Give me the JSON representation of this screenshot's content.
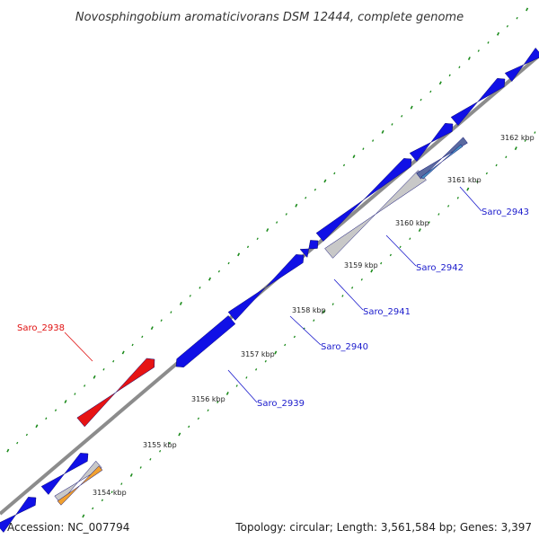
{
  "title": "Novosphingobium aromaticivorans DSM 12444, complete genome",
  "footer": {
    "accession": "Accession: NC_007794",
    "summary": "Topology: circular; Length: 3,561,584 bp; Genes: 3,397"
  },
  "ticks": [
    {
      "label": "3154 kbp"
    },
    {
      "label": "3155 kbp"
    },
    {
      "label": "3156 kbp"
    },
    {
      "label": "3157 kbp"
    },
    {
      "label": "3158 kbp"
    },
    {
      "label": "3159 kbp"
    },
    {
      "label": "3160 kbp"
    },
    {
      "label": "3161 kbp"
    },
    {
      "label": "3162 kbp"
    }
  ],
  "gene_labels": [
    {
      "name": "Saro_2938",
      "highlight": true
    },
    {
      "name": "Saro_2939",
      "highlight": false
    },
    {
      "name": "Saro_2940",
      "highlight": false
    },
    {
      "name": "Saro_2941",
      "highlight": false
    },
    {
      "name": "Saro_2942",
      "highlight": false
    },
    {
      "name": "Saro_2943",
      "highlight": false
    }
  ],
  "colors": {
    "backbone": "#8c8c8c",
    "cds": "#1010e6",
    "highlight": "#e61414",
    "orange": "#f0a030",
    "gray_feature": "#c8c8c8",
    "slate_feature": "#5a6aa0",
    "tick": "#1a8a1a",
    "gene_label": "#1a1acc",
    "highlight_label": "#e01010"
  }
}
